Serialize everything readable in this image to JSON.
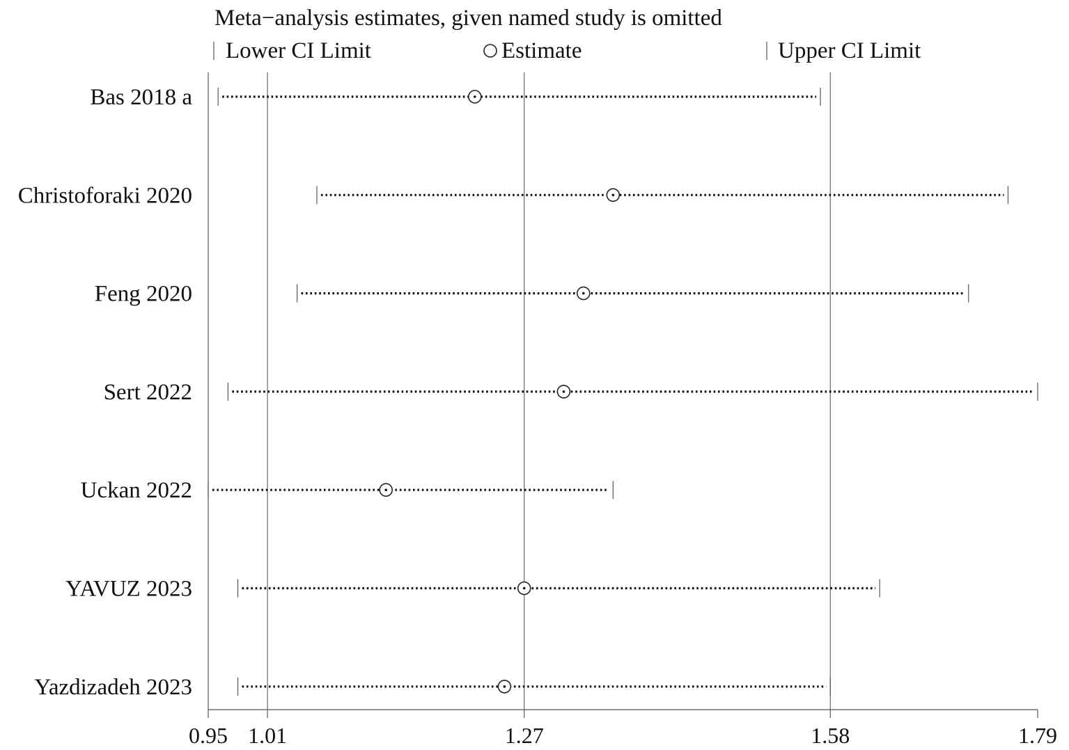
{
  "chart_data": {
    "type": "scatter",
    "title": "Meta−analysis estimates, given named study is omitted",
    "legend": {
      "placement": "top",
      "items": [
        {
          "symbol": "tick",
          "label": "Lower CI Limit"
        },
        {
          "symbol": "circle",
          "label": "Estimate"
        },
        {
          "symbol": "tick",
          "label": "Upper CI Limit"
        }
      ]
    },
    "xlim": [
      0.95,
      1.79
    ],
    "x_ticks": [
      0.95,
      1.01,
      1.27,
      1.58,
      1.79
    ],
    "x_tick_labels": [
      "0.95",
      "1.01",
      "1.27",
      "1.58",
      "1.79"
    ],
    "reference_lines": [
      1.01,
      1.27,
      1.58
    ],
    "studies": [
      {
        "name": "Bas 2018 a",
        "lower": 0.96,
        "estimate": 1.22,
        "upper": 1.57
      },
      {
        "name": "Christoforaki 2020",
        "lower": 1.06,
        "estimate": 1.36,
        "upper": 1.76
      },
      {
        "name": "Feng 2020",
        "lower": 1.04,
        "estimate": 1.33,
        "upper": 1.72
      },
      {
        "name": "Sert 2022",
        "lower": 0.97,
        "estimate": 1.31,
        "upper": 1.79
      },
      {
        "name": "Uckan 2022",
        "lower": 0.95,
        "estimate": 1.13,
        "upper": 1.36
      },
      {
        "name": "YAVUZ 2023",
        "lower": 0.98,
        "estimate": 1.27,
        "upper": 1.63
      },
      {
        "name": "Yazdizadeh 2023",
        "lower": 0.98,
        "estimate": 1.25,
        "upper": 1.58
      }
    ]
  }
}
